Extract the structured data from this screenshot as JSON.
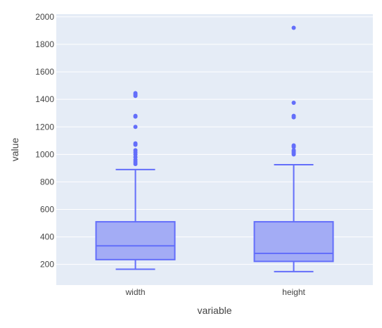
{
  "chart_data": {
    "type": "box",
    "xlabel": "variable",
    "ylabel": "value",
    "ylim": [
      50,
      2020
    ],
    "yticks": [
      200,
      400,
      600,
      800,
      1000,
      1200,
      1400,
      1600,
      1800,
      2000
    ],
    "grid": true,
    "legend": "none",
    "colors": {
      "plot_bg": "#e5ecf6",
      "grid": "#ffffff",
      "box_fill": "#a3acf5",
      "box_stroke": "#636efa",
      "outlier": "#636efa"
    },
    "categories": [
      "width",
      "height"
    ],
    "boxes": [
      {
        "category": "width",
        "min": 165,
        "q1": 235,
        "median": 335,
        "q3": 510,
        "max": 890,
        "outliers": [
          930,
          945,
          960,
          980,
          1000,
          1015,
          1030,
          1070,
          1080,
          1200,
          1275,
          1280,
          1425,
          1435,
          1445
        ]
      },
      {
        "category": "height",
        "min": 148,
        "q1": 222,
        "median": 280,
        "q3": 510,
        "max": 925,
        "outliers": [
          1000,
          1010,
          1020,
          1030,
          1055,
          1065,
          1270,
          1280,
          1375,
          1920
        ]
      }
    ]
  }
}
